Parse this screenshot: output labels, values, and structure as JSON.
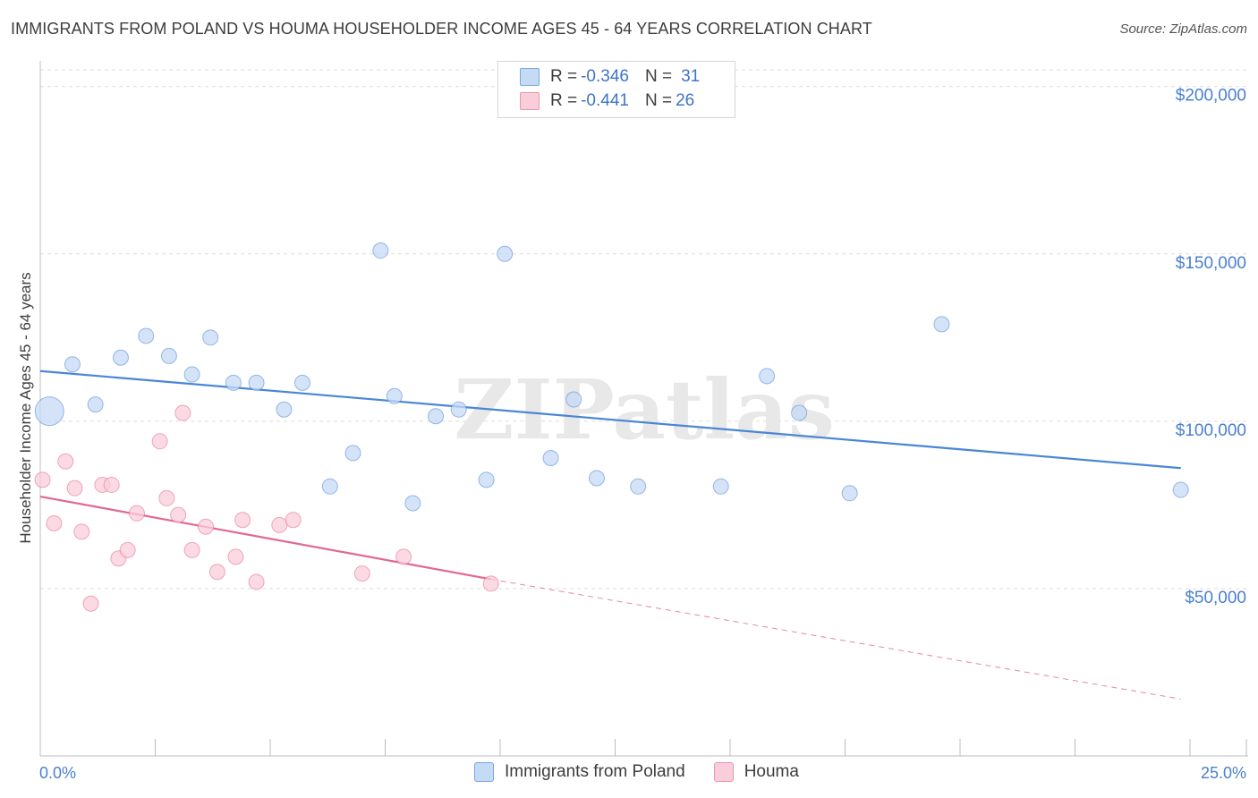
{
  "title": "IMMIGRANTS FROM POLAND VS HOUMA HOUSEHOLDER INCOME AGES 45 - 64 YEARS CORRELATION CHART",
  "source": "Source: ZipAtlas.com",
  "watermark": "ZIPatlas",
  "legend": {
    "rows": [
      {
        "r_label": "R = ",
        "r_value": "-0.346",
        "n_label": "N = ",
        "n_value": "31",
        "color": "#aac9f0"
      },
      {
        "r_label": "R = ",
        "r_value": "-0.441",
        "n_label": "N = ",
        "n_value": "26",
        "color": "#f6b7c8"
      }
    ]
  },
  "bottom_legend": [
    {
      "label": "Immigrants from Poland",
      "color": "#aac9f0"
    },
    {
      "label": "Houma",
      "color": "#f6b7c8"
    }
  ],
  "chart_data": {
    "type": "scatter",
    "title": "IMMIGRANTS FROM POLAND VS HOUMA HOUSEHOLDER INCOME AGES 45 - 64 YEARS CORRELATION CHART",
    "xlabel": "",
    "ylabel": "Householder Income Ages 45 - 64 years",
    "xlim": [
      0,
      25
    ],
    "ylim": [
      0,
      205000
    ],
    "x_tick_labels": [
      "0.0%",
      "25.0%"
    ],
    "y_ticks": [
      50000,
      100000,
      150000,
      200000
    ],
    "y_tick_labels": [
      "$50,000",
      "$100,000",
      "$150,000",
      "$200,000"
    ],
    "grid": true,
    "series": [
      {
        "name": "Immigrants from Poland",
        "color": "#4a86d6",
        "fill": "#c5daf5",
        "points": [
          [
            0.2,
            103000,
            3
          ],
          [
            0.7,
            117000,
            1
          ],
          [
            1.2,
            105000,
            1
          ],
          [
            1.75,
            119000,
            1
          ],
          [
            2.3,
            125500,
            1
          ],
          [
            2.8,
            119500,
            1
          ],
          [
            3.3,
            114000,
            1
          ],
          [
            3.7,
            125000,
            1
          ],
          [
            4.2,
            111500,
            1
          ],
          [
            4.7,
            111500,
            1
          ],
          [
            5.3,
            103500,
            1
          ],
          [
            5.7,
            111500,
            1
          ],
          [
            6.3,
            80500,
            1
          ],
          [
            6.8,
            90500,
            1
          ],
          [
            7.4,
            151000,
            1
          ],
          [
            7.7,
            107500,
            1
          ],
          [
            8.1,
            75500,
            1
          ],
          [
            8.6,
            101500,
            1
          ],
          [
            9.1,
            103500,
            1
          ],
          [
            9.7,
            82500,
            1
          ],
          [
            10.1,
            150000,
            1
          ],
          [
            11.1,
            89000,
            1
          ],
          [
            11.6,
            106500,
            1
          ],
          [
            12.1,
            83000,
            1
          ],
          [
            13.0,
            80500,
            1
          ],
          [
            14.8,
            80500,
            1
          ],
          [
            15.8,
            113500,
            1
          ],
          [
            16.5,
            102500,
            1
          ],
          [
            17.6,
            78500,
            1
          ],
          [
            19.6,
            129000,
            1
          ],
          [
            24.8,
            79500,
            1
          ]
        ],
        "trend": {
          "x0": 0,
          "y0": 115000,
          "x1": 24.8,
          "y1": 86000
        }
      },
      {
        "name": "Houma",
        "color": "#e26792",
        "fill": "#f9cdda",
        "points": [
          [
            0.05,
            82500,
            1
          ],
          [
            0.3,
            69500,
            1
          ],
          [
            0.55,
            88000,
            1
          ],
          [
            0.75,
            80000,
            1
          ],
          [
            0.9,
            67000,
            1
          ],
          [
            1.1,
            45500,
            1
          ],
          [
            1.35,
            81000,
            1
          ],
          [
            1.55,
            81000,
            1
          ],
          [
            1.7,
            59000,
            1
          ],
          [
            1.9,
            61500,
            1
          ],
          [
            2.1,
            72500,
            1
          ],
          [
            2.6,
            94000,
            1
          ],
          [
            2.75,
            77000,
            1
          ],
          [
            3.0,
            72000,
            1
          ],
          [
            3.1,
            102500,
            1
          ],
          [
            3.3,
            61500,
            1
          ],
          [
            3.6,
            68500,
            1
          ],
          [
            3.85,
            55000,
            1
          ],
          [
            4.25,
            59500,
            1
          ],
          [
            4.4,
            70500,
            1
          ],
          [
            4.7,
            52000,
            1
          ],
          [
            5.2,
            69000,
            1
          ],
          [
            5.5,
            70500,
            1
          ],
          [
            7.0,
            54500,
            1
          ],
          [
            7.9,
            59500,
            1
          ],
          [
            9.8,
            51500,
            1
          ]
        ],
        "trend": {
          "x0": 0,
          "y0": 77500,
          "x1": 9.8,
          "y1": 52800
        },
        "trend_extension": {
          "x0": 9.8,
          "y0": 52800,
          "x1": 24.8,
          "y1": 17000
        }
      }
    ]
  }
}
